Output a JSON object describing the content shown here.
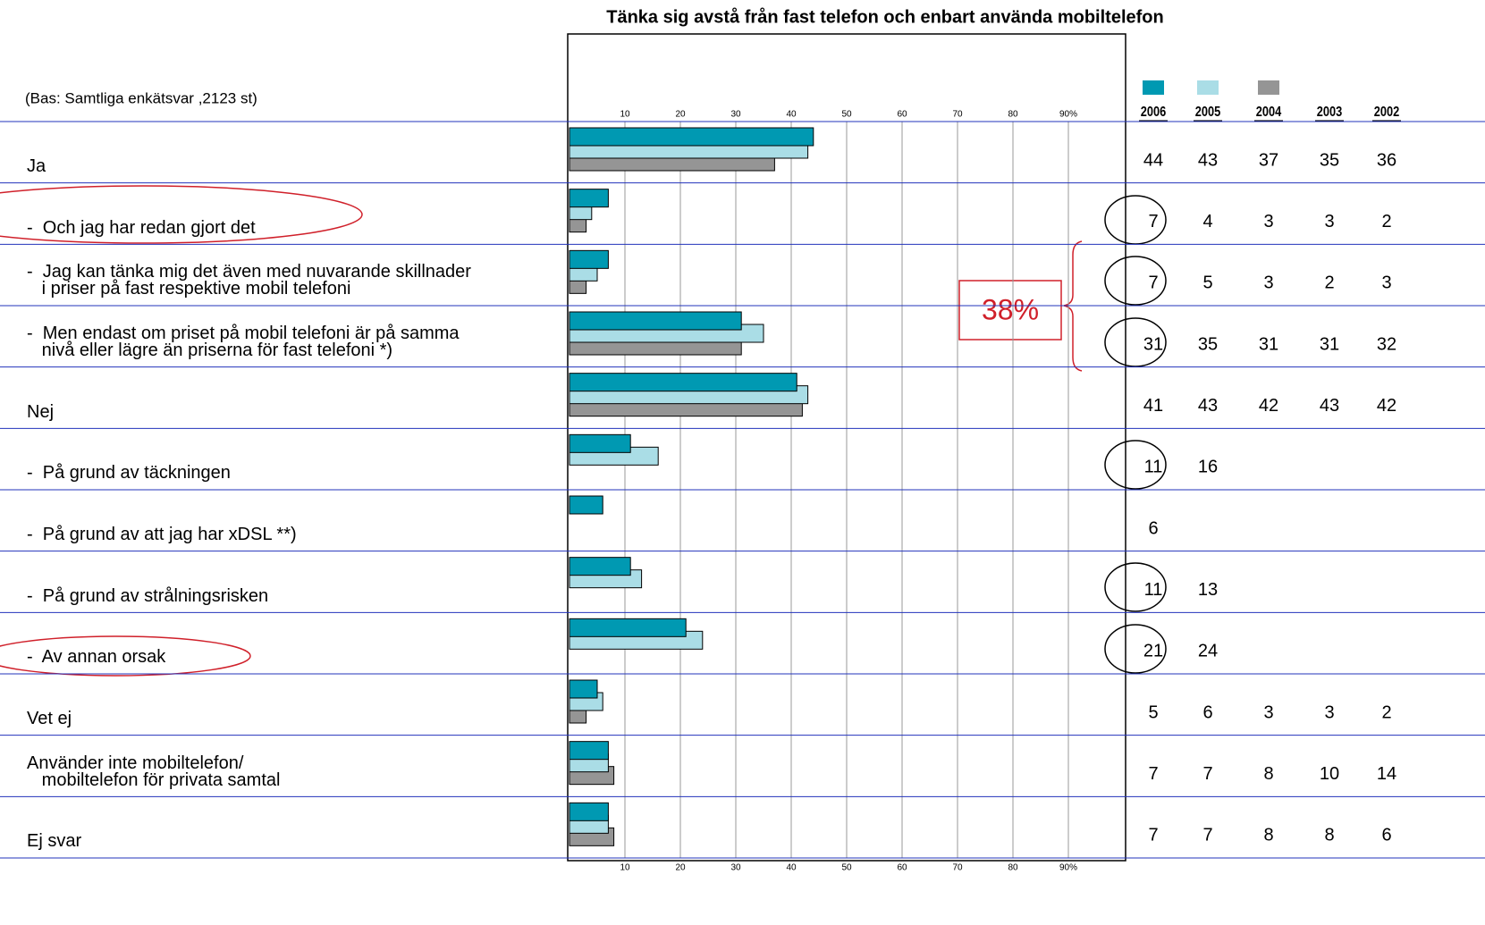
{
  "chart_data": {
    "type": "bar",
    "orientation": "horizontal",
    "title": "Tänka sig avstå från fast telefon och enbart använda mobiltelefon",
    "annotations": [
      "(Bas: Samtliga enkätsvar ,2123 st)",
      "38%"
    ],
    "categories": [
      "Ja",
      "-  Och jag har redan gjort det",
      "-  Jag kan tänka mig det även med nuvarande skillnader\n   i priser på fast respektive mobil telefoni",
      "-  Men endast om priset på mobil telefoni är på samma\n   nivå eller lägre än priserna för fast telefoni *)",
      "Nej",
      "-  På grund av täckningen",
      "-  På grund av att jag har xDSL **)",
      "-  På grund av strålningsrisken",
      "-  Av annan orsak",
      "Vet ej",
      "Använder inte mobiltelefon/\n   mobiltelefon för privata samtal",
      "Ej svar"
    ],
    "series": [
      {
        "name": "2006",
        "color": "#0099b2",
        "values": [
          44,
          7,
          7,
          31,
          41,
          11,
          6,
          11,
          21,
          5,
          7,
          7
        ]
      },
      {
        "name": "2005",
        "color": "#aadde6",
        "values": [
          43,
          4,
          5,
          35,
          43,
          16,
          null,
          13,
          24,
          6,
          7,
          7
        ]
      },
      {
        "name": "2004",
        "color": "#959595",
        "values": [
          37,
          3,
          3,
          31,
          42,
          null,
          null,
          null,
          null,
          3,
          8,
          8
        ]
      },
      {
        "name": "2003",
        "values": [
          35,
          3,
          2,
          31,
          43,
          null,
          null,
          null,
          null,
          3,
          10,
          8
        ]
      },
      {
        "name": "2002",
        "values": [
          36,
          2,
          3,
          32,
          42,
          null,
          null,
          null,
          null,
          2,
          14,
          6
        ]
      }
    ],
    "xlim": [
      0,
      100
    ],
    "xticks": [
      10,
      20,
      30,
      40,
      50,
      60,
      70,
      80,
      {
        "value": 90,
        "label": "90%"
      }
    ],
    "grid": true
  }
}
